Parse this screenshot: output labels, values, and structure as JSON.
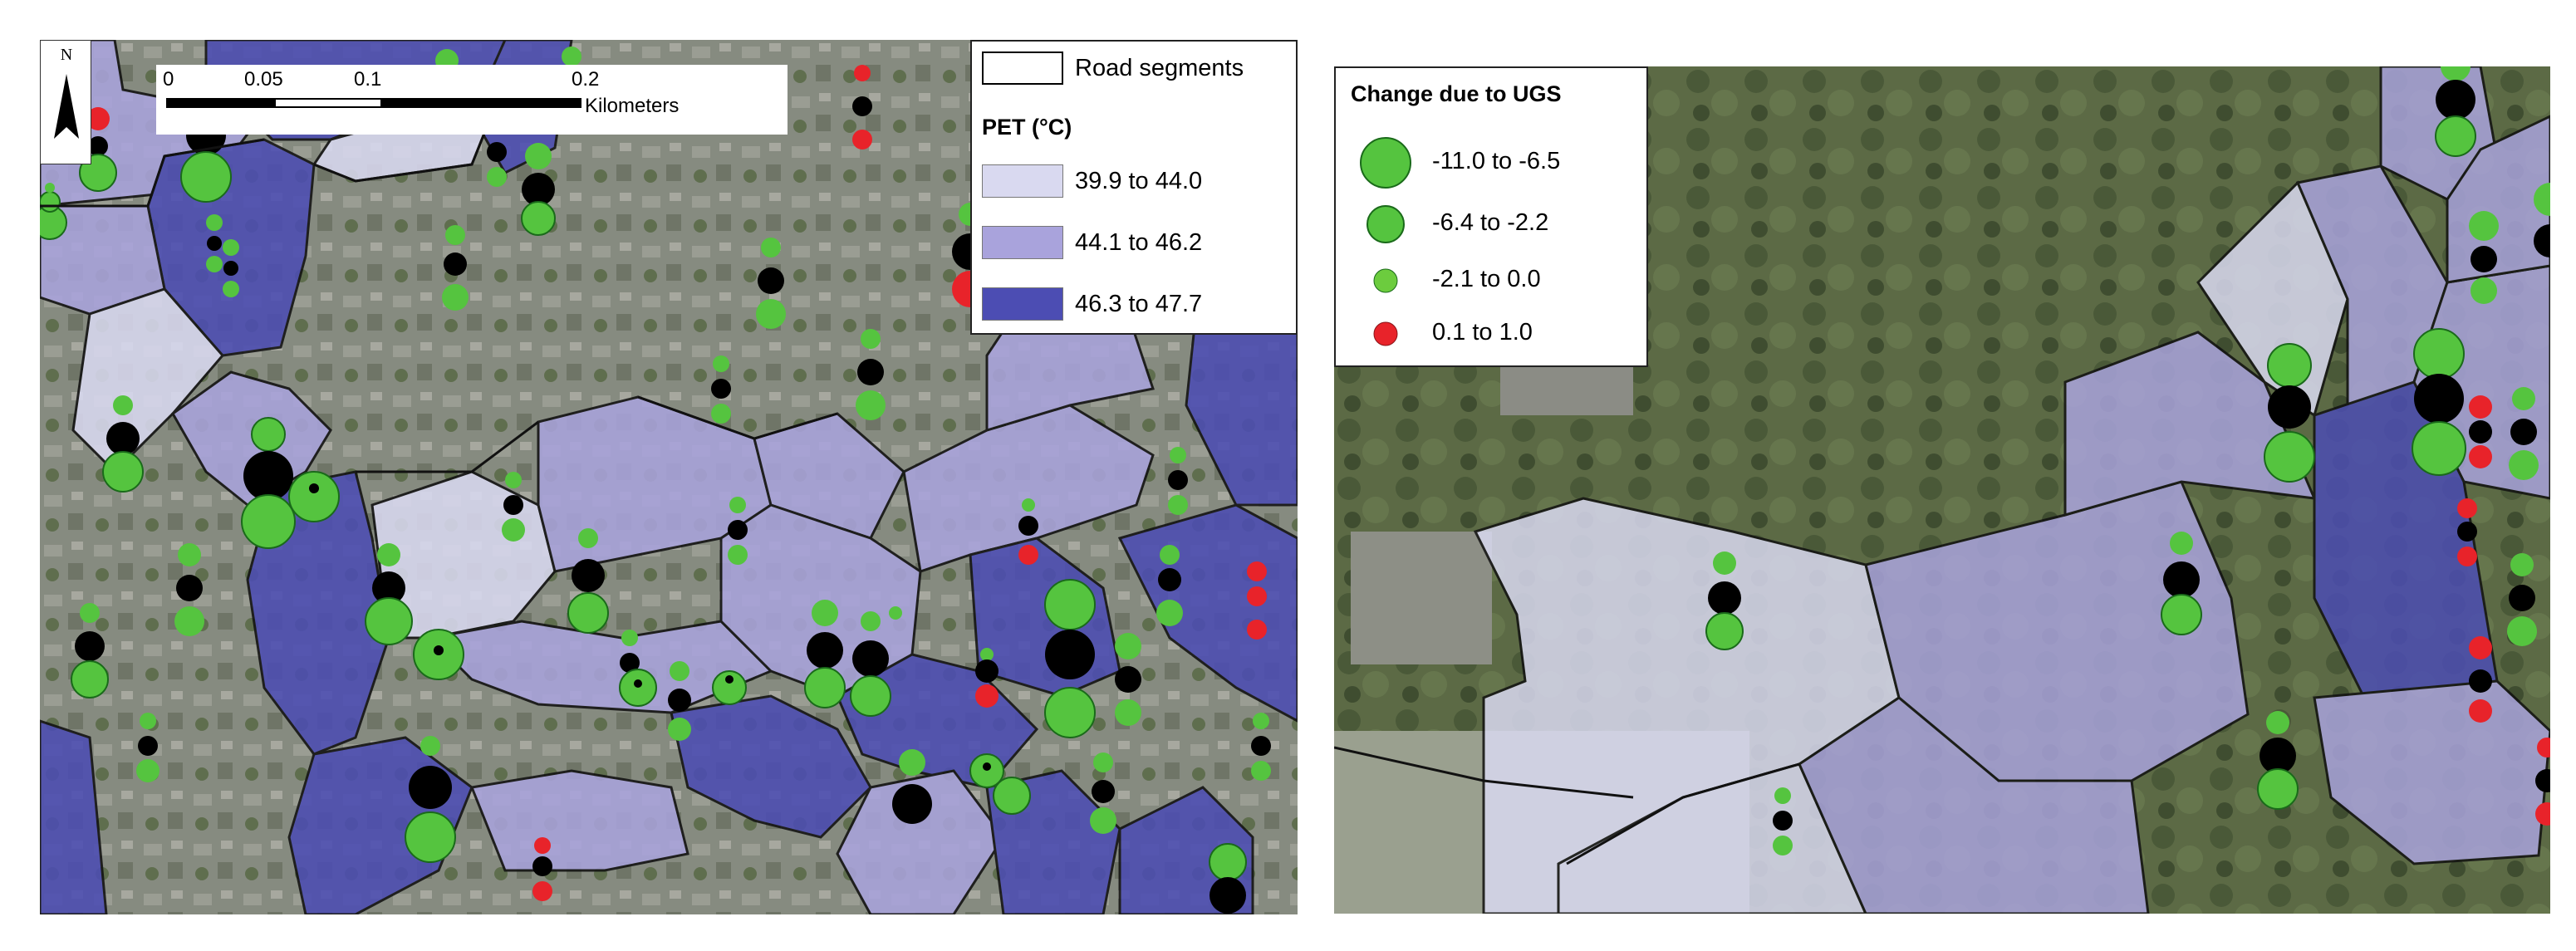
{
  "left_map": {
    "scale_bar": {
      "ticks": [
        "0",
        "0.05",
        "0.1",
        "0.2"
      ],
      "unit": "Kilometers"
    },
    "north_arrow_label": "N",
    "legend": {
      "road_label": "Road segments",
      "pet_title": "PET (°C)",
      "classes": [
        {
          "label": "39.9 to 44.0",
          "color": "#d9d9f0"
        },
        {
          "label": "44.1 to 46.2",
          "color": "#a9a3dc"
        },
        {
          "label": "46.3 to 47.7",
          "color": "#4c4db3"
        }
      ]
    }
  },
  "right_map": {
    "legend": {
      "title": "Change due to UGS",
      "classes": [
        {
          "label": "-11.0 to -6.5",
          "color": "#55c43f"
        },
        {
          "label": "-6.4 to -2.2",
          "color": "#55c43f"
        },
        {
          "label": "-2.1 to 0.0",
          "color": "#6ccc3e"
        },
        {
          "label": "0.1 to 1.0",
          "color": "#e8232a"
        }
      ]
    }
  },
  "colors": {
    "aerial_base": "#7d8574",
    "green_symbol": "#55c43f",
    "red_symbol": "#e8232a",
    "boundary": "#111111"
  }
}
